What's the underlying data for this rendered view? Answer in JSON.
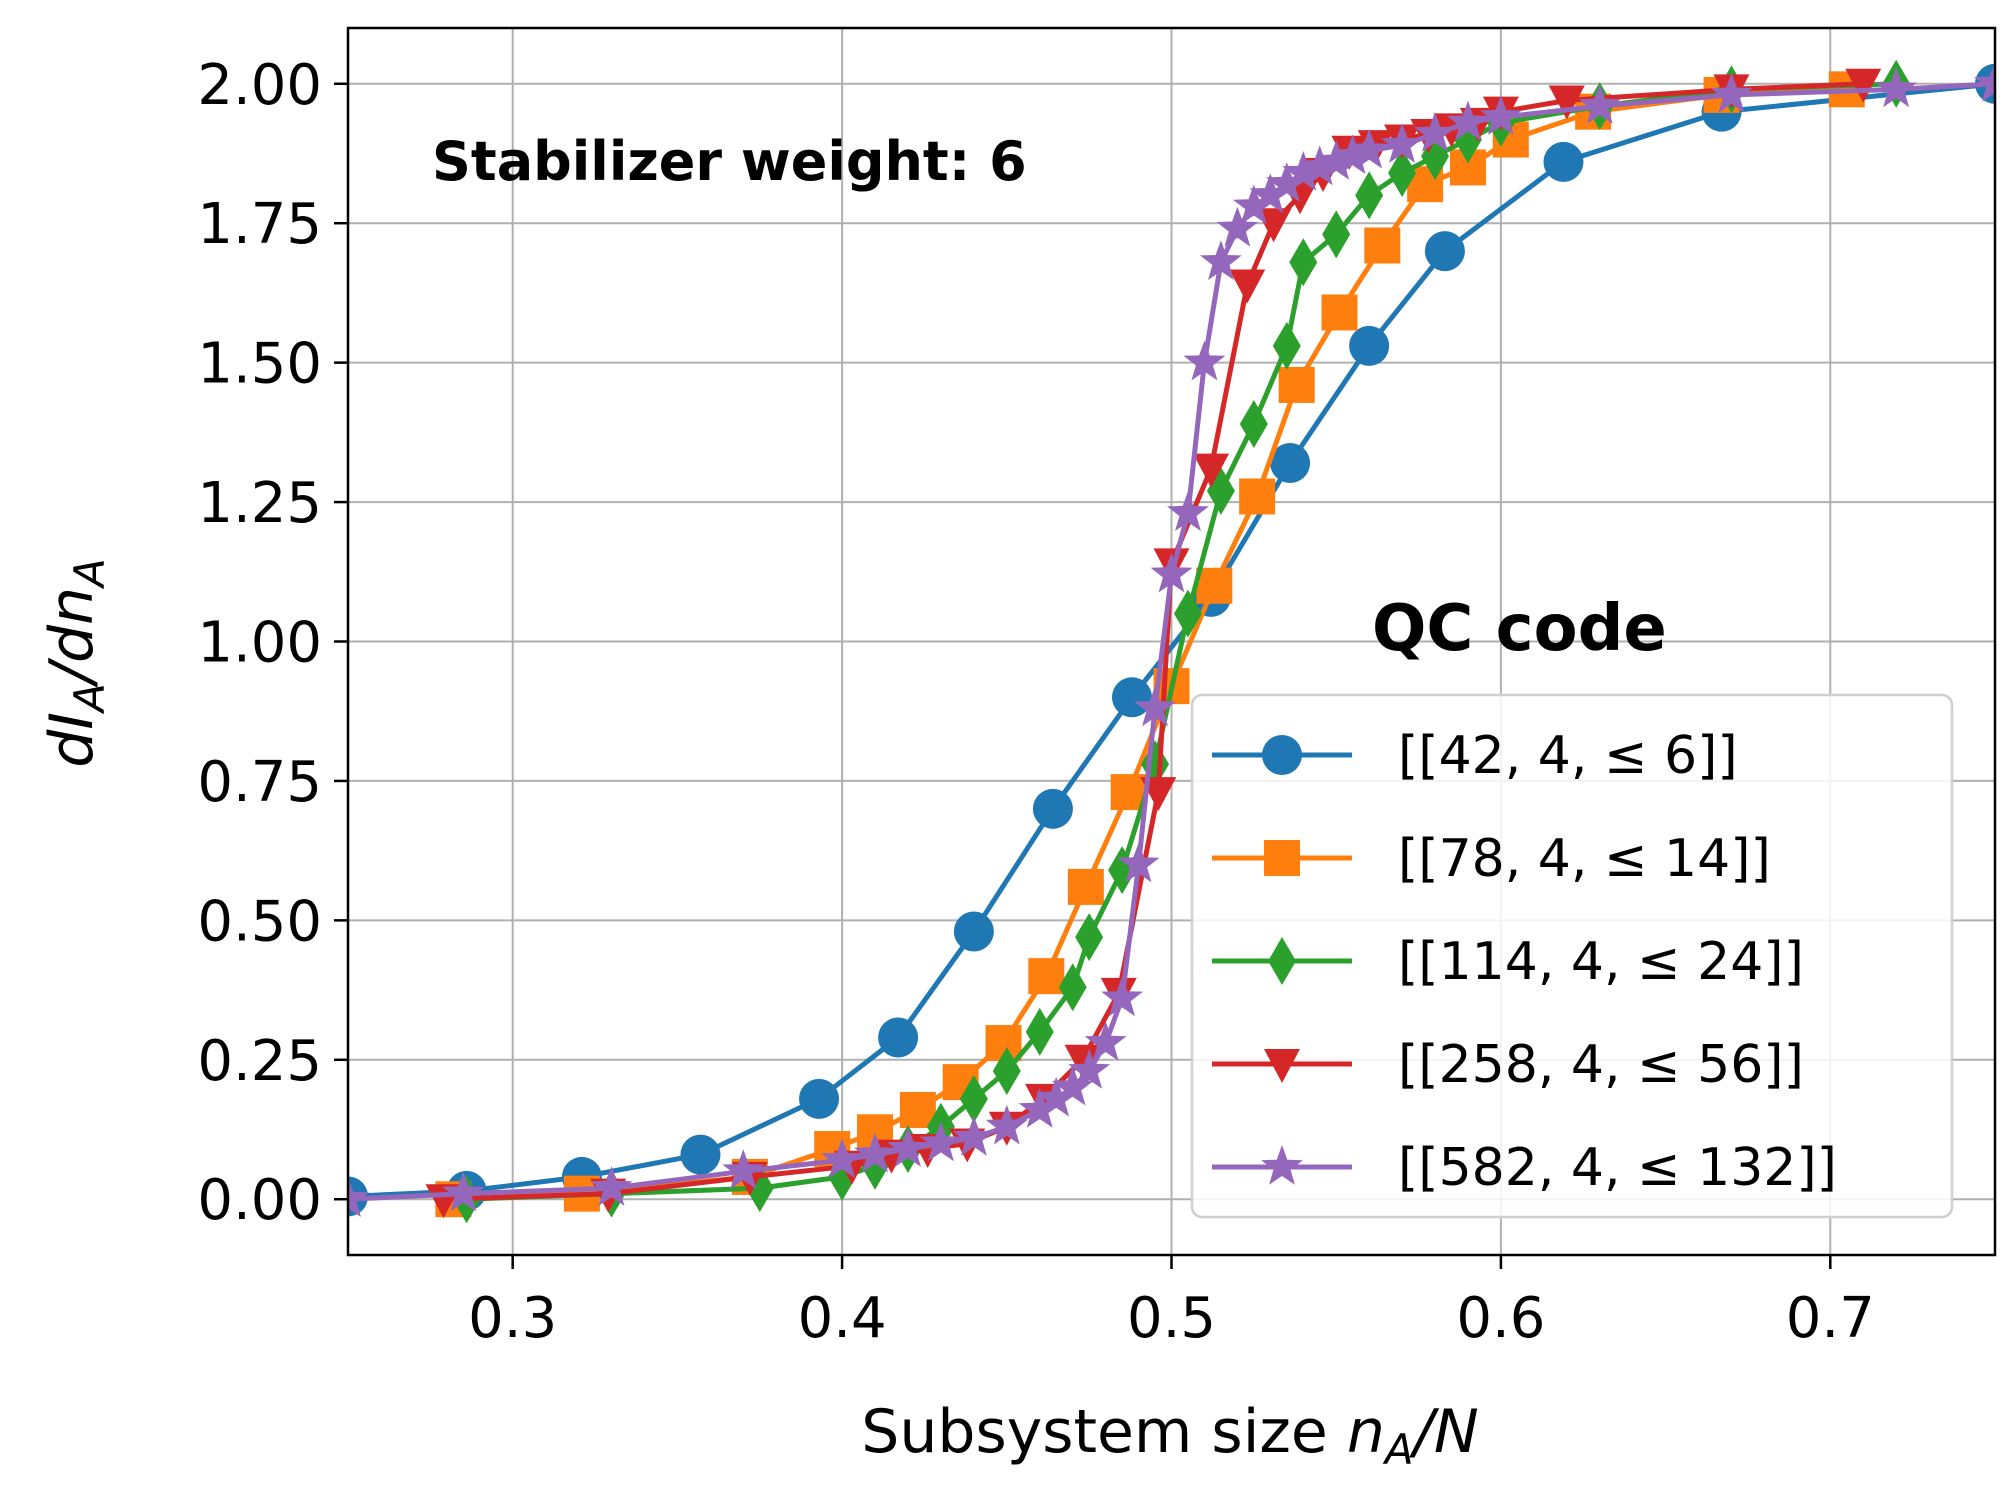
{
  "chart_data": {
    "type": "line",
    "title": "",
    "annotation": "Stabilizer weight: 6",
    "legend_title": "QC code",
    "xlabel": {
      "main": "Subsystem size ",
      "var": "n",
      "sub": "A",
      "tail": "/N"
    },
    "ylabel": {
      "d1": "dI",
      "sub1": "A",
      "mid": "/dn",
      "sub2": "A"
    },
    "xlim": [
      0.25,
      0.75
    ],
    "ylim": [
      -0.1,
      2.1
    ],
    "xticks": [
      0.3,
      0.4,
      0.5,
      0.6,
      0.7
    ],
    "xtick_labels": [
      "0.3",
      "0.4",
      "0.5",
      "0.6",
      "0.7"
    ],
    "yticks": [
      0.0,
      0.25,
      0.5,
      0.75,
      1.0,
      1.25,
      1.5,
      1.75,
      2.0
    ],
    "ytick_labels": [
      "0.00",
      "0.25",
      "0.50",
      "0.75",
      "1.00",
      "1.25",
      "1.50",
      "1.75",
      "2.00"
    ],
    "grid": true,
    "legend_position": "lower-right",
    "series": [
      {
        "name": "[[42, 4, ≤ 6]]",
        "color": "#1f77b4",
        "marker": "circle",
        "x": [
          0.214,
          0.25,
          0.286,
          0.321,
          0.357,
          0.393,
          0.417,
          0.44,
          0.464,
          0.488,
          0.512,
          0.536,
          0.56,
          0.583,
          0.619,
          0.667,
          0.75
        ],
        "y": [
          0.0,
          0.005,
          0.015,
          0.04,
          0.08,
          0.18,
          0.29,
          0.48,
          0.7,
          0.9,
          1.08,
          1.32,
          1.53,
          1.7,
          1.86,
          1.95,
          2.0
        ]
      },
      {
        "name": "[[78, 4, ≤ 14]]",
        "color": "#ff7f0e",
        "marker": "square",
        "x": [
          0.282,
          0.321,
          0.372,
          0.397,
          0.41,
          0.423,
          0.436,
          0.449,
          0.462,
          0.474,
          0.487,
          0.5,
          0.513,
          0.526,
          0.538,
          0.551,
          0.564,
          0.577,
          0.59,
          0.603,
          0.628,
          0.667,
          0.705
        ],
        "y": [
          0.0,
          0.01,
          0.04,
          0.09,
          0.12,
          0.16,
          0.21,
          0.28,
          0.4,
          0.56,
          0.73,
          0.92,
          1.1,
          1.26,
          1.46,
          1.59,
          1.71,
          1.82,
          1.85,
          1.9,
          1.95,
          1.98,
          1.99
        ]
      },
      {
        "name": "[[114, 4, ≤ 24]]",
        "color": "#2ca02c",
        "marker": "diamond",
        "x": [
          0.286,
          0.33,
          0.375,
          0.4,
          0.41,
          0.42,
          0.43,
          0.44,
          0.45,
          0.46,
          0.47,
          0.475,
          0.485,
          0.495,
          0.505,
          0.515,
          0.525,
          0.535,
          0.54,
          0.55,
          0.56,
          0.57,
          0.58,
          0.59,
          0.6,
          0.63,
          0.67,
          0.72
        ],
        "y": [
          0.0,
          0.01,
          0.02,
          0.04,
          0.06,
          0.09,
          0.13,
          0.18,
          0.23,
          0.3,
          0.38,
          0.47,
          0.59,
          0.78,
          1.05,
          1.27,
          1.39,
          1.53,
          1.68,
          1.73,
          1.8,
          1.84,
          1.87,
          1.9,
          1.93,
          1.96,
          1.99,
          2.0
        ]
      },
      {
        "name": "[[258, 4, ≤ 56]]",
        "color": "#d62728",
        "marker": "triangle-down",
        "x": [
          0.279,
          0.329,
          0.372,
          0.403,
          0.415,
          0.426,
          0.438,
          0.45,
          0.461,
          0.473,
          0.484,
          0.496,
          0.5,
          0.512,
          0.523,
          0.531,
          0.539,
          0.546,
          0.554,
          0.562,
          0.57,
          0.578,
          0.585,
          0.593,
          0.6,
          0.62,
          0.67,
          0.71
        ],
        "y": [
          0.0,
          0.01,
          0.04,
          0.06,
          0.08,
          0.09,
          0.1,
          0.13,
          0.18,
          0.25,
          0.37,
          0.73,
          1.14,
          1.31,
          1.64,
          1.75,
          1.8,
          1.84,
          1.88,
          1.89,
          1.9,
          1.91,
          1.92,
          1.93,
          1.95,
          1.97,
          1.99,
          2.0
        ]
      },
      {
        "name": "[[582, 4, ≤ 132]]",
        "color": "#9467bd",
        "marker": "star",
        "x": [
          0.25,
          0.285,
          0.33,
          0.37,
          0.4,
          0.41,
          0.42,
          0.43,
          0.44,
          0.45,
          0.46,
          0.465,
          0.47,
          0.475,
          0.48,
          0.485,
          0.49,
          0.495,
          0.5,
          0.505,
          0.51,
          0.515,
          0.52,
          0.525,
          0.53,
          0.535,
          0.54,
          0.545,
          0.55,
          0.555,
          0.56,
          0.57,
          0.58,
          0.59,
          0.6,
          0.63,
          0.67,
          0.72,
          0.75
        ],
        "y": [
          0.0,
          0.01,
          0.02,
          0.05,
          0.07,
          0.08,
          0.09,
          0.1,
          0.11,
          0.13,
          0.16,
          0.18,
          0.2,
          0.23,
          0.28,
          0.36,
          0.6,
          0.88,
          1.12,
          1.23,
          1.5,
          1.68,
          1.74,
          1.78,
          1.8,
          1.82,
          1.84,
          1.85,
          1.86,
          1.87,
          1.88,
          1.89,
          1.91,
          1.93,
          1.94,
          1.96,
          1.98,
          1.99,
          2.0
        ]
      }
    ]
  }
}
